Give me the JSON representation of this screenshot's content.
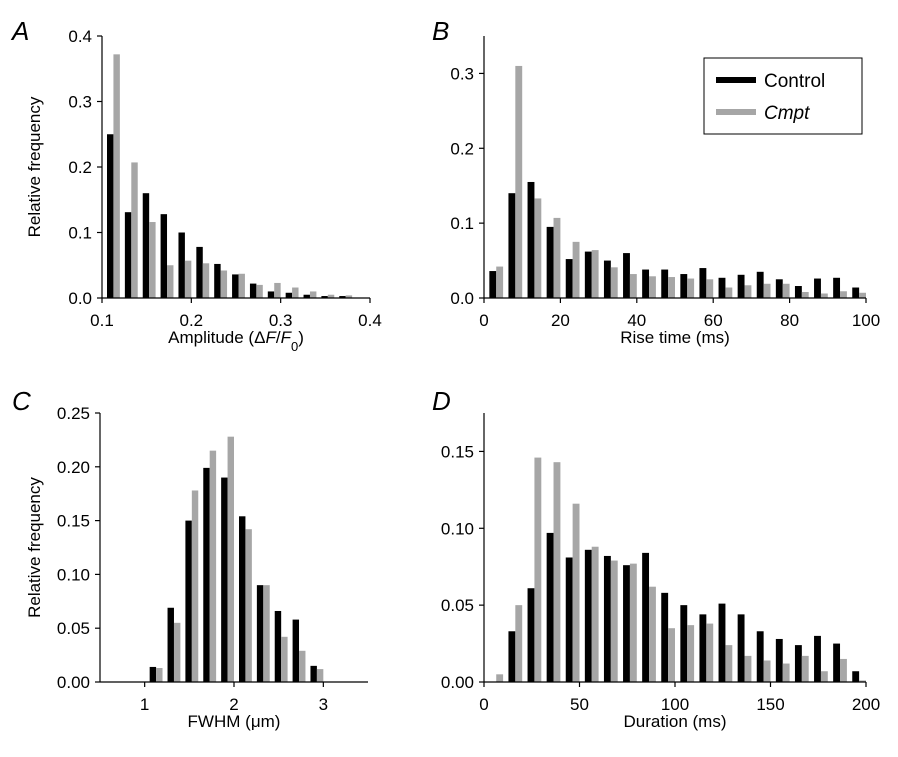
{
  "colors": {
    "control": "#000000",
    "cmpt": "#a6a6a6"
  },
  "legend": [
    {
      "label": "Control",
      "series": "control",
      "italic": false
    },
    {
      "label": "Cmpt",
      "series": "cmpt",
      "italic": true
    }
  ],
  "chart_data": [
    {
      "panel": "A",
      "type": "bar",
      "xlabel": "Amplitude (ΔF/F0)",
      "xlabel_parts": [
        {
          "text": "Amplitude (",
          "italic": false
        },
        {
          "text": "Δ",
          "italic": false
        },
        {
          "text": "F",
          "italic": true
        },
        {
          "text": "/",
          "italic": false
        },
        {
          "text": "F",
          "italic": true
        },
        {
          "text": "0",
          "italic": false,
          "sub": true
        },
        {
          "text": ")",
          "italic": false
        }
      ],
      "ylabel": "Relative frequency",
      "xlim": [
        0.1,
        0.4
      ],
      "ylim": [
        0,
        0.4
      ],
      "xticks": [
        0.1,
        0.2,
        0.3,
        0.4
      ],
      "xtick_labels": [
        "0.1",
        "0.2",
        "0.3",
        "0.4"
      ],
      "yticks": [
        0,
        0.1,
        0.2,
        0.3,
        0.4
      ],
      "ytick_labels": [
        "0.0",
        "0.1",
        "0.2",
        "0.3",
        "0.4"
      ],
      "bin_width": 0.02,
      "x": [
        0.12,
        0.14,
        0.16,
        0.18,
        0.2,
        0.22,
        0.24,
        0.26,
        0.28,
        0.3,
        0.32,
        0.34,
        0.36,
        0.38
      ],
      "series": [
        {
          "name": "Control",
          "key": "control",
          "values": [
            0.25,
            0.131,
            0.16,
            0.128,
            0.1,
            0.078,
            0.052,
            0.036,
            0.022,
            0.01,
            0.008,
            0.005,
            0.003,
            0.003
          ]
        },
        {
          "name": "Cmpt",
          "key": "cmpt",
          "values": [
            0.372,
            0.207,
            0.116,
            0.05,
            0.057,
            0.053,
            0.042,
            0.037,
            0.02,
            0.023,
            0.016,
            0.01,
            0.005,
            0.004
          ]
        }
      ]
    },
    {
      "panel": "B",
      "type": "bar",
      "xlabel": "Rise time (ms)",
      "ylabel": "",
      "xlim": [
        0,
        100
      ],
      "ylim": [
        0,
        0.35
      ],
      "xticks": [
        0,
        20,
        40,
        60,
        80,
        100
      ],
      "xtick_labels": [
        "0",
        "20",
        "40",
        "60",
        "80",
        "100"
      ],
      "yticks": [
        0,
        0.1,
        0.2,
        0.3
      ],
      "ytick_labels": [
        "0.0",
        "0.1",
        "0.2",
        "0.3"
      ],
      "bin_width": 5,
      "x": [
        5,
        10,
        15,
        20,
        25,
        30,
        35,
        40,
        45,
        50,
        55,
        60,
        65,
        70,
        75,
        80,
        85,
        90,
        95,
        100
      ],
      "series": [
        {
          "name": "Control",
          "key": "control",
          "values": [
            0.036,
            0.14,
            0.155,
            0.095,
            0.052,
            0.062,
            0.05,
            0.06,
            0.038,
            0.038,
            0.032,
            0.04,
            0.027,
            0.031,
            0.035,
            0.025,
            0.016,
            0.026,
            0.027,
            0.014
          ]
        },
        {
          "name": "Cmpt",
          "key": "cmpt",
          "values": [
            0.042,
            0.31,
            0.133,
            0.107,
            0.075,
            0.064,
            0.041,
            0.032,
            0.029,
            0.028,
            0.026,
            0.025,
            0.014,
            0.017,
            0.019,
            0.019,
            0.008,
            0.006,
            0.009,
            0.007
          ]
        }
      ]
    },
    {
      "panel": "C",
      "type": "bar",
      "xlabel": "FWHM (μm)",
      "xlabel_parts": [
        {
          "text": "FWHM (",
          "italic": false
        },
        {
          "text": "μ",
          "italic": false
        },
        {
          "text": "m)",
          "italic": false
        }
      ],
      "ylabel": "Relative frequency",
      "xlim": [
        0.5,
        3.5
      ],
      "ylim": [
        0,
        0.25
      ],
      "xticks": [
        1,
        2,
        3
      ],
      "xtick_labels": [
        "1",
        "2",
        "3"
      ],
      "yticks": [
        0,
        0.05,
        0.1,
        0.15,
        0.2,
        0.25
      ],
      "ytick_labels": [
        "0.00",
        "0.05",
        "0.10",
        "0.15",
        "0.20",
        "0.25"
      ],
      "bin_width": 0.2,
      "x": [
        1.2,
        1.4,
        1.6,
        1.8,
        2.0,
        2.2,
        2.4,
        2.6,
        2.8,
        3.0
      ],
      "series": [
        {
          "name": "Control",
          "key": "control",
          "values": [
            0.014,
            0.069,
            0.15,
            0.199,
            0.19,
            0.154,
            0.09,
            0.066,
            0.058,
            0.015
          ]
        },
        {
          "name": "Cmpt",
          "key": "cmpt",
          "values": [
            0.013,
            0.055,
            0.178,
            0.215,
            0.228,
            0.142,
            0.09,
            0.042,
            0.029,
            0.012
          ]
        }
      ]
    },
    {
      "panel": "D",
      "type": "bar",
      "xlabel": "Duration (ms)",
      "ylabel": "",
      "xlim": [
        0,
        200
      ],
      "ylim": [
        0,
        0.175
      ],
      "xticks": [
        0,
        50,
        100,
        150,
        200
      ],
      "xtick_labels": [
        "0",
        "50",
        "100",
        "150",
        "200"
      ],
      "yticks": [
        0,
        0.05,
        0.1,
        0.15
      ],
      "ytick_labels": [
        "0.00",
        "0.05",
        "0.10",
        "0.15"
      ],
      "bin_width": 10,
      "x": [
        10,
        20,
        30,
        40,
        50,
        60,
        70,
        80,
        90,
        100,
        110,
        120,
        130,
        140,
        150,
        160,
        170,
        180,
        190,
        200
      ],
      "series": [
        {
          "name": "Control",
          "key": "control",
          "values": [
            0.0,
            0.033,
            0.061,
            0.097,
            0.081,
            0.086,
            0.082,
            0.076,
            0.084,
            0.058,
            0.05,
            0.044,
            0.051,
            0.044,
            0.033,
            0.028,
            0.024,
            0.03,
            0.025,
            0.007
          ]
        },
        {
          "name": "Cmpt",
          "key": "cmpt",
          "values": [
            0.005,
            0.05,
            0.146,
            0.143,
            0.116,
            0.088,
            0.079,
            0.077,
            0.062,
            0.035,
            0.037,
            0.038,
            0.024,
            0.017,
            0.014,
            0.012,
            0.017,
            0.007,
            0.015,
            0.001
          ]
        }
      ]
    }
  ]
}
